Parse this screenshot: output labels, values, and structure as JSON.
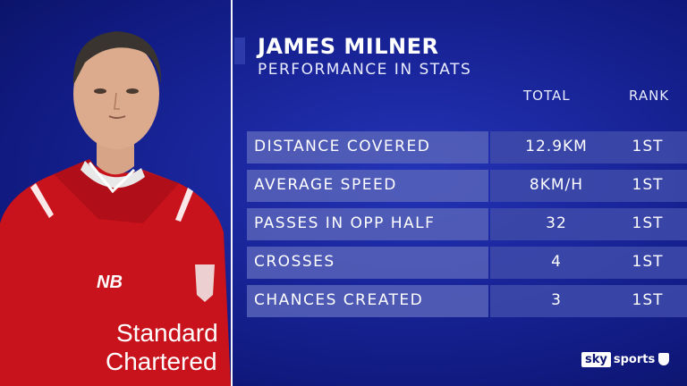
{
  "header": {
    "name": "JAMES MILNER",
    "subtitle": "PERFORMANCE IN STATS"
  },
  "columns": {
    "total": "TOTAL",
    "rank": "RANK"
  },
  "rows": [
    {
      "label": "DISTANCE COVERED",
      "total": "12.9KM",
      "rank": "1ST"
    },
    {
      "label": "AVERAGE SPEED",
      "total": "8KM/H",
      "rank": "1ST"
    },
    {
      "label": "PASSES IN OPP HALF",
      "total": "32",
      "rank": "1ST"
    },
    {
      "label": "CROSSES",
      "total": "4",
      "rank": "1ST"
    },
    {
      "label": "CHANCES CREATED",
      "total": "3",
      "rank": "1ST"
    }
  ],
  "shirt": {
    "sponsor_line1": "Standard",
    "sponsor_line2": "Chartered"
  },
  "branding": {
    "logo_sky": "sky",
    "logo_sports": "sports"
  },
  "colors": {
    "background": "#1a269c",
    "shirt": "#d0141e",
    "divider": "#ffffff"
  }
}
